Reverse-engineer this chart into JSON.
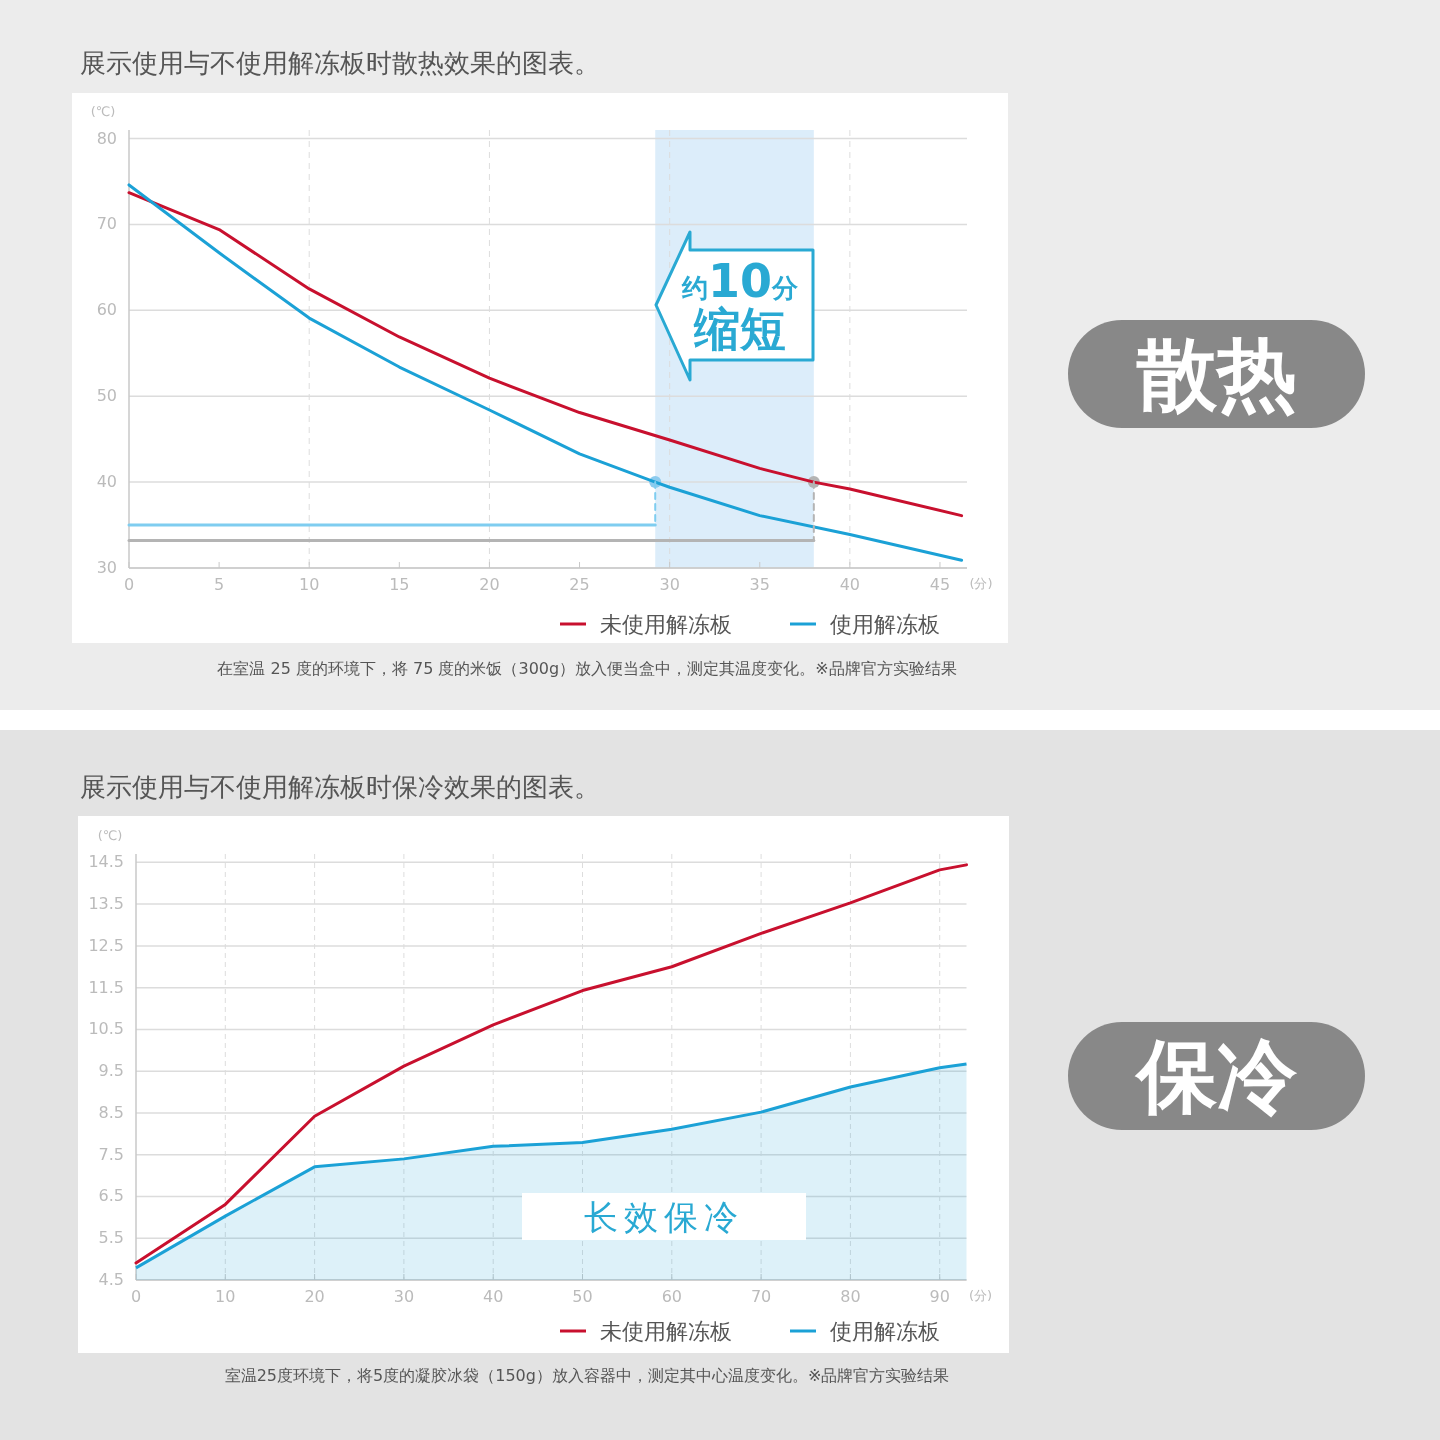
{
  "chart_data": [
    {
      "type": "line",
      "title": "展示使用与不使用解冻板时散热效果的图表。",
      "xlabel": "(分)",
      "ylabel": "(℃)",
      "xlim": [
        0,
        46.5
      ],
      "xticks": [
        0,
        5,
        10,
        15,
        20,
        25,
        30,
        35,
        40,
        45
      ],
      "ylim": [
        30,
        81
      ],
      "yticks": [
        30,
        40,
        50,
        60,
        70,
        80
      ],
      "grid": "y",
      "legend": "bottom",
      "series": [
        {
          "name": "未使用解冻板",
          "color": "#c8102e",
          "x": [
            0,
            5,
            10,
            15,
            20,
            25,
            30,
            35,
            38,
            40,
            46.2
          ],
          "values": [
            73.7,
            69.4,
            62.5,
            56.9,
            52.1,
            48.1,
            44.9,
            41.6,
            40,
            39.2,
            36.1
          ]
        },
        {
          "name": "使用解冻板",
          "color": "#1ba1d6",
          "x": [
            0,
            5,
            10,
            15,
            20,
            25,
            29.2,
            30,
            35,
            40,
            46.2
          ],
          "values": [
            74.6,
            66.7,
            59.1,
            53.4,
            48.4,
            43.3,
            40,
            39.4,
            36.1,
            33.9,
            30.9
          ]
        },
        {
          "color": "#7fcdf0",
          "x": [
            0,
            29.2
          ],
          "values": [
            35,
            35
          ]
        },
        {
          "color": "#b4b4b4",
          "x": [
            0,
            38
          ],
          "values": [
            33.2,
            33.2
          ]
        },
        {
          "color": "#7fcdf0",
          "line_style": "dashed",
          "x": [
            29.2,
            29.2
          ],
          "values": [
            40,
            35
          ]
        },
        {
          "color": "#b4b4b4",
          "line_style": "dashed",
          "x": [
            38,
            38
          ],
          "values": [
            40,
            33.2
          ]
        },
        {
          "type": "scatter",
          "marker": "circle",
          "colors": [
            "#8ccbee",
            "#b4b4b4"
          ],
          "x": [
            29.2,
            38
          ],
          "values": [
            40,
            40
          ]
        }
      ],
      "bands": [
        {
          "axis": "x",
          "from": 29.2,
          "to": 38,
          "color": "#dcedfa"
        }
      ],
      "ref_lines": [
        {
          "axis": "x",
          "value": 10,
          "line_style": "dashed",
          "color": "#dddddd"
        },
        {
          "axis": "x",
          "value": 20,
          "line_style": "dashed",
          "color": "#dddddd"
        },
        {
          "axis": "x",
          "value": 30,
          "line_style": "dashed",
          "color": "#dddddd"
        },
        {
          "axis": "x",
          "value": 40,
          "line_style": "dashed",
          "color": "#dddddd"
        }
      ],
      "annotations": [
        "约10分",
        "缩短",
        "在室温 25 度的环境下，将 75 度的米饭（300g）放入便当盒中，测定其温度变化。※品牌官方实验结果",
        "散热"
      ]
    },
    {
      "type": "line",
      "title": "展示使用与不使用解冻板时保冷效果的图表。",
      "xlabel": "(分)",
      "ylabel": "(℃)",
      "xlim": [
        0,
        93
      ],
      "xticks": [
        0,
        10,
        20,
        30,
        40,
        50,
        60,
        70,
        80,
        90
      ],
      "ylim": [
        4.5,
        14.7
      ],
      "yticks": [
        4.5,
        5.5,
        6.5,
        7.5,
        8.5,
        9.5,
        10.5,
        11.5,
        12.5,
        13.5,
        14.5
      ],
      "grid": true,
      "legend": "bottom",
      "series": [
        {
          "name": "未使用解冻板",
          "color": "#c8102e",
          "x": [
            0,
            10,
            20,
            30,
            40,
            50,
            60,
            70,
            80,
            90,
            93
          ],
          "values": [
            4.91,
            6.31,
            8.42,
            9.62,
            10.61,
            11.43,
            12.0,
            12.8,
            13.53,
            14.32,
            14.44
          ]
        },
        {
          "name": "使用解冻板",
          "type": "area",
          "color": "#1ba1d6",
          "x": [
            0,
            10,
            20,
            30,
            40,
            50,
            60,
            70,
            80,
            90,
            93
          ],
          "values": [
            4.79,
            6.03,
            7.21,
            7.4,
            7.7,
            7.79,
            8.11,
            8.52,
            9.12,
            9.58,
            9.67
          ]
        }
      ],
      "annotations": [
        "长效保冷",
        "室温25度环境下，将5度的凝胶冰袋（150g）放入容器中，测定其中心温度变化。※品牌官方实验结果",
        "保冷"
      ]
    }
  ]
}
